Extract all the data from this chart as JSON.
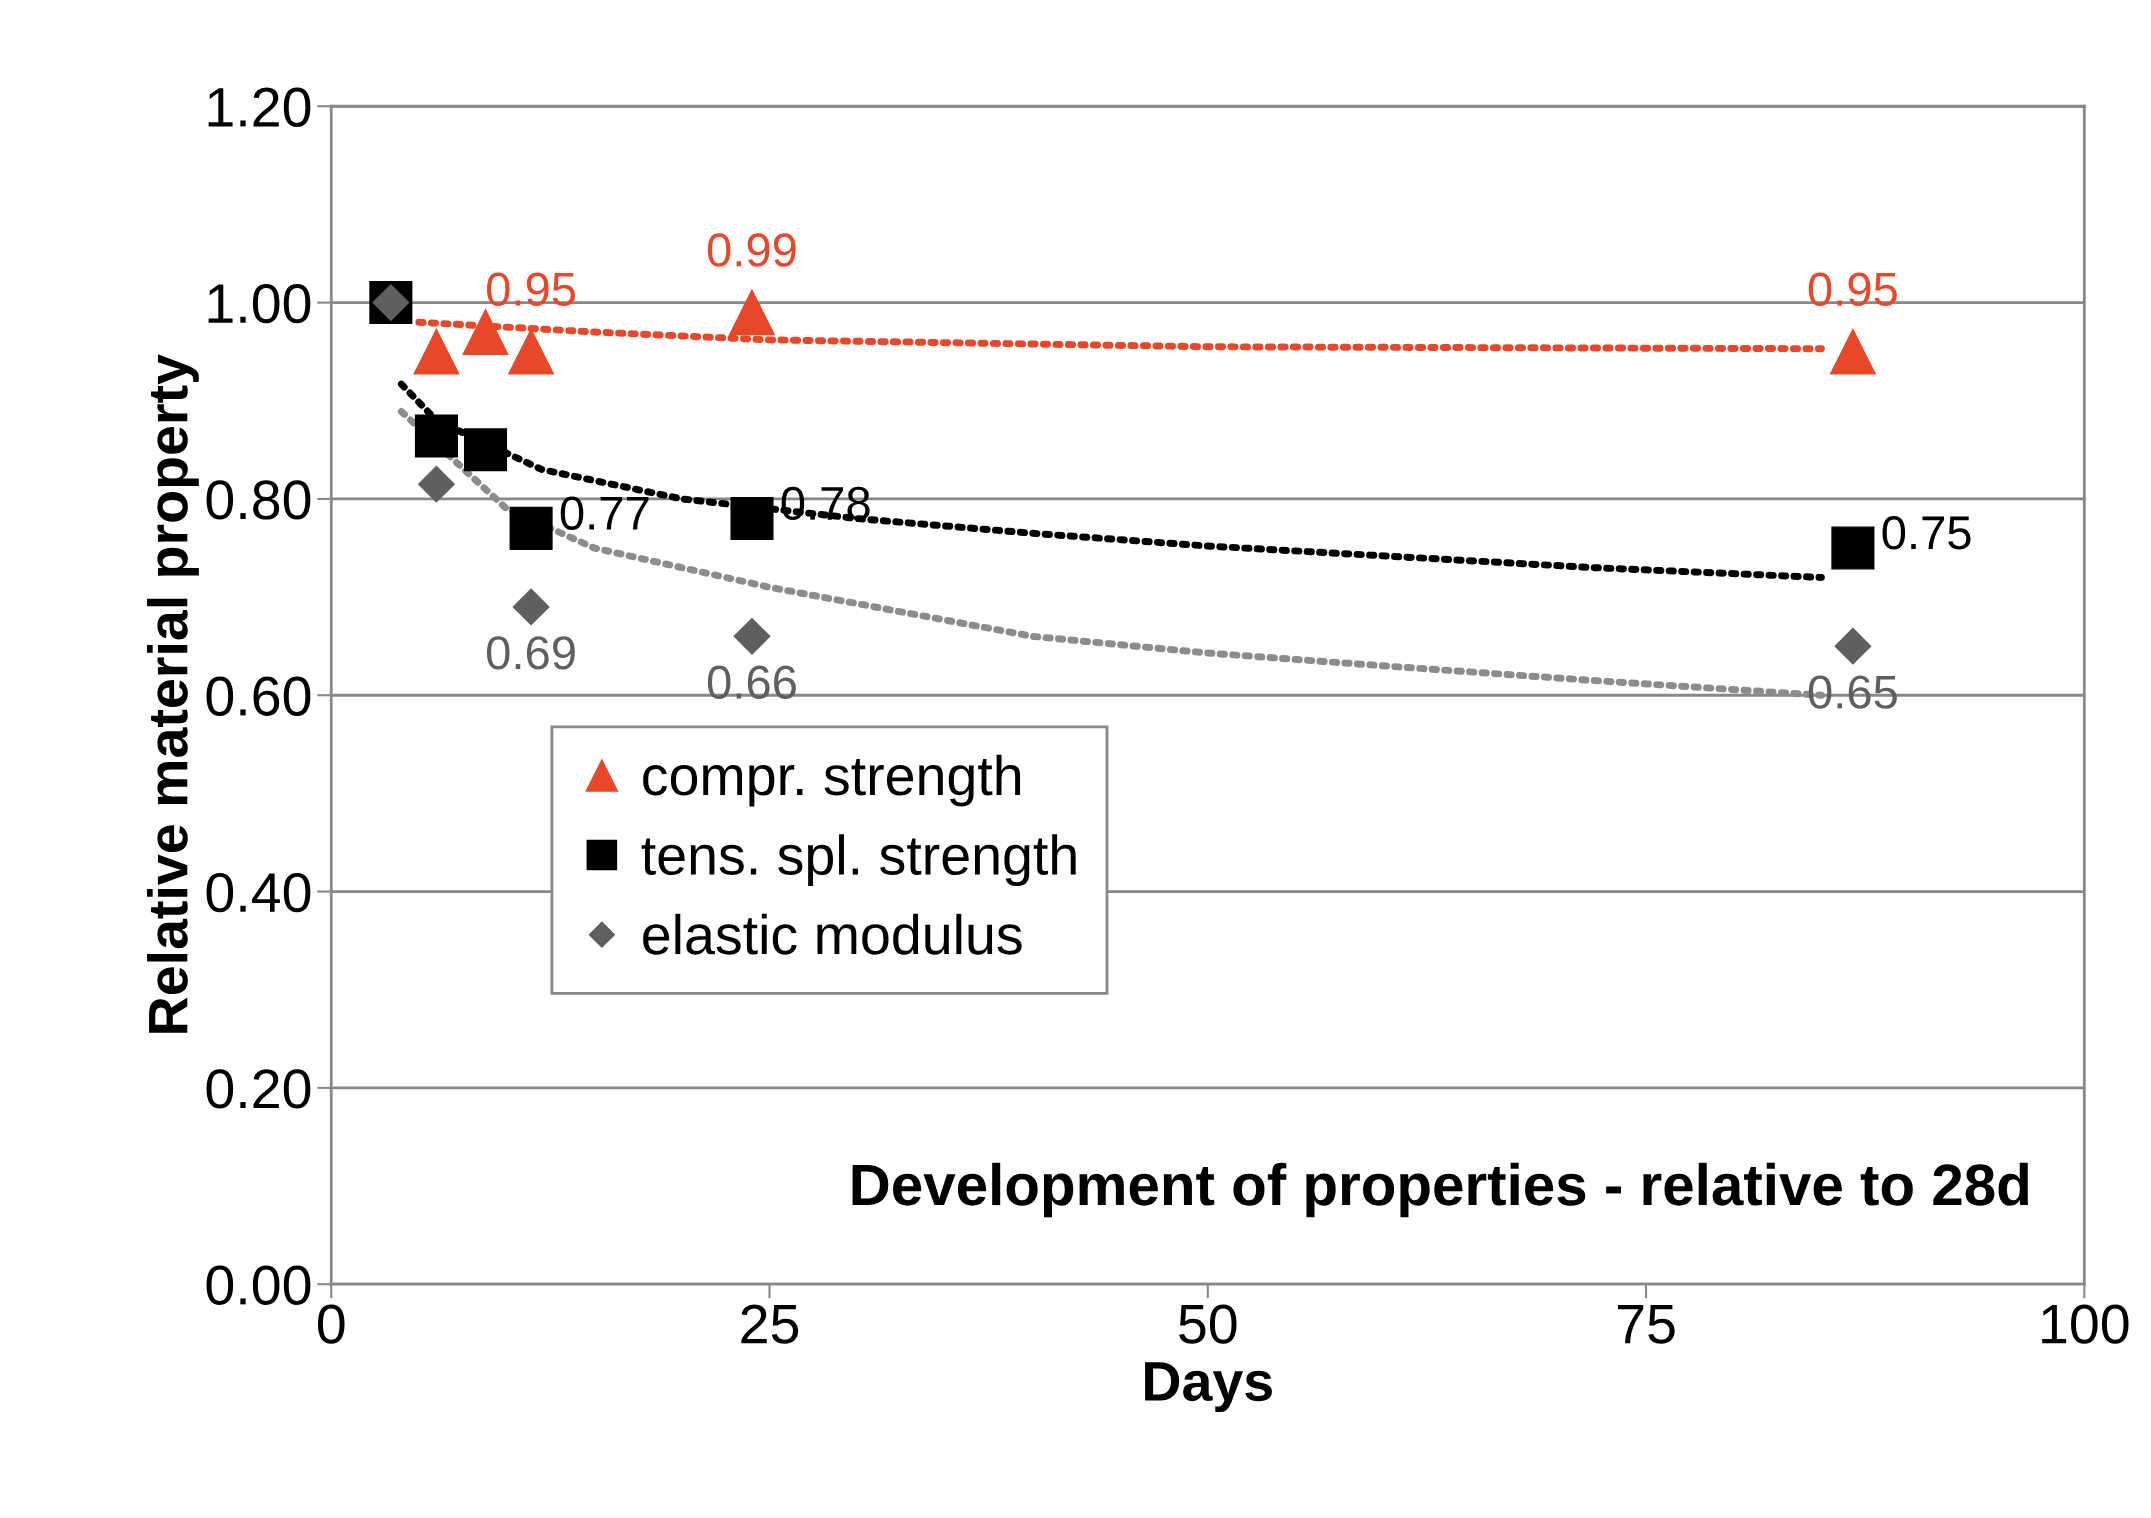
{
  "chart_data": {
    "type": "scatter",
    "xlabel": "Days",
    "ylabel": "Relative material property",
    "xlim": [
      0,
      100
    ],
    "xticks": [
      0,
      25,
      50,
      75,
      100
    ],
    "ylim": [
      0,
      1.2
    ],
    "yticks": [
      {
        "value": 0,
        "label": "0.00"
      },
      {
        "value": 0.2,
        "label": "0.20"
      },
      {
        "value": 0.4,
        "label": "0.40"
      },
      {
        "value": 0.6,
        "label": "0.60"
      },
      {
        "value": 0.8,
        "label": "0.80"
      },
      {
        "value": 1.0,
        "label": "1.00"
      },
      {
        "value": 1.2,
        "label": "1.20"
      }
    ],
    "grid": "y",
    "legend": "center left",
    "annotations": [
      "Development of properties - relative to 28d"
    ],
    "series": [
      {
        "type": "line",
        "color": "#e8482a",
        "line_style": "dotted",
        "marker": "none",
        "x": [
          5,
          15,
          25,
          50,
          85
        ],
        "values": [
          0.98,
          0.97,
          0.962,
          0.955,
          0.953
        ]
      },
      {
        "type": "line",
        "color": "#000000",
        "line_style": "dotted",
        "marker": "none",
        "x": [
          4,
          6,
          12,
          20,
          30,
          40,
          50,
          60,
          72,
          85
        ],
        "values": [
          0.917,
          0.88,
          0.83,
          0.8,
          0.78,
          0.765,
          0.752,
          0.742,
          0.73,
          0.72
        ]
      },
      {
        "type": "line",
        "color": "#8c8c8c",
        "line_style": "dotted",
        "marker": "none",
        "x": [
          4,
          10,
          15,
          25,
          40,
          50,
          60,
          72,
          85
        ],
        "values": [
          0.889,
          0.79,
          0.75,
          0.71,
          0.66,
          0.643,
          0.63,
          0.615,
          0.6
        ]
      },
      {
        "name": "compr. strength",
        "color": "#e8482a",
        "marker": "triangle",
        "x": [
          6,
          8.8,
          11.4,
          24,
          86.8
        ],
        "values": [
          0.95,
          0.97,
          0.95,
          0.99,
          0.95
        ],
        "value_labels": [
          null,
          null,
          "0.95",
          "0.99",
          "0.95"
        ]
      },
      {
        "name": "tens. spl. strength",
        "color": "#000000",
        "marker": "square",
        "x": [
          3.4,
          6,
          8.8,
          11.4,
          24,
          86.8
        ],
        "values": [
          1.0,
          0.864,
          0.85,
          0.77,
          0.78,
          0.75
        ],
        "value_labels": [
          null,
          null,
          null,
          "0.77",
          "0.78",
          "0.75"
        ]
      },
      {
        "name": "elastic modulus",
        "color": "#5f5f5f",
        "marker": "diamond",
        "x": [
          3.4,
          6,
          11.4,
          24,
          86.8
        ],
        "values": [
          1.0,
          0.815,
          0.69,
          0.66,
          0.65
        ],
        "value_labels": [
          null,
          null,
          "0.69",
          "0.66",
          "0.65"
        ]
      }
    ]
  }
}
